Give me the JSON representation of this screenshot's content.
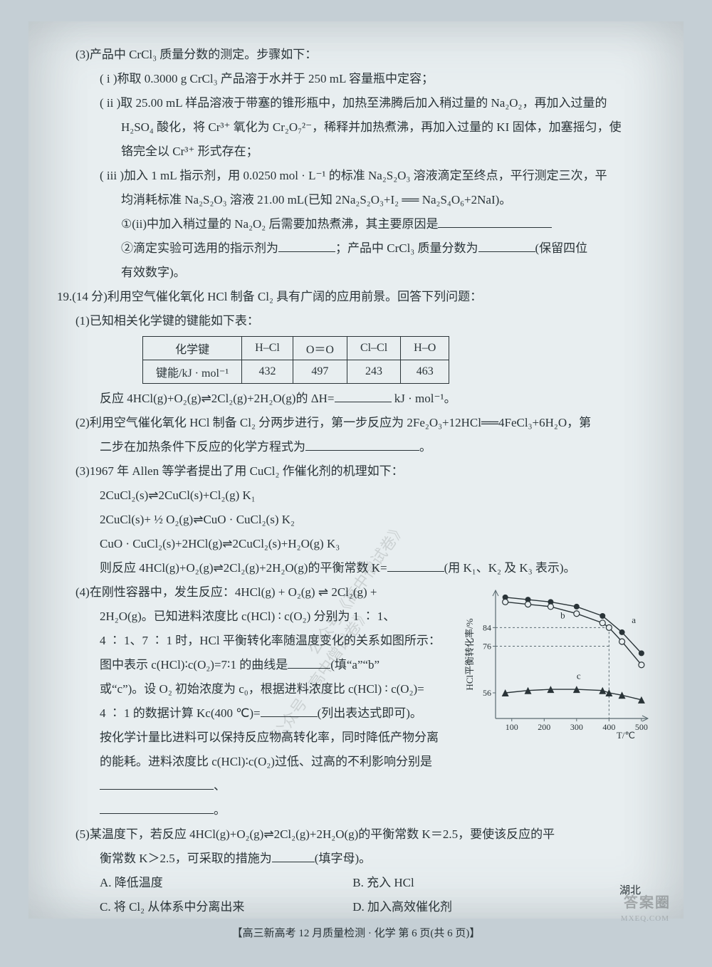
{
  "q3": {
    "intro": "(3)产品中 CrCl₃ 质量分数的测定。步骤如下：",
    "step1": "( i )称取 0.3000 g CrCl₃ 产品溶于水并于 250 mL 容量瓶中定容；",
    "step2a": "( ii )取 25.00 mL 样品溶液于带塞的锥形瓶中，加热至沸腾后加入稍过量的 Na₂O₂，再加入过量的",
    "step2b": "H₂SO₄ 酸化，将 Cr³⁺ 氧化为 Cr₂O₇²⁻，稀释并加热煮沸，再加入过量的 KI 固体，加塞摇匀，使",
    "step2c": "铬完全以 Cr³⁺ 形式存在；",
    "step3a": "( iii )加入 1 mL 指示剂，用 0.0250 mol · L⁻¹ 的标准 Na₂S₂O₃ 溶液滴定至终点，平行测定三次，平",
    "step3b": "均消耗标准 Na₂S₂O₃ 溶液 21.00 mL(已知 2Na₂S₂O₃+I₂ ══ Na₂S₄O₆+2NaI)。",
    "sub1": "①(ii)中加入稍过量的 Na₂O₂ 后需要加热煮沸，其主要原因是",
    "sub2a": "②滴定实验可选用的指示剂为",
    "sub2b": "；产品中 CrCl₃ 质量分数为",
    "sub2c": "(保留四位",
    "sub2d": "有效数字)。"
  },
  "q19": {
    "intro": "19.(14 分)利用空气催化氧化 HCl 制备 Cl₂ 具有广阔的应用前景。回答下列问题：",
    "p1_intro": "(1)已知相关化学键的键能如下表：",
    "table": {
      "headers": [
        "化学键",
        "H–Cl",
        "O＝O",
        "Cl–Cl",
        "H–O"
      ],
      "row_label": "键能/kJ · mol⁻¹",
      "values": [
        "432",
        "497",
        "243",
        "463"
      ]
    },
    "p1_after_a": "反应 4HCl(g)+O₂(g)⇌2Cl₂(g)+2H₂O(g)的 ΔH=",
    "p1_after_b": " kJ · mol⁻¹。",
    "p2a": "(2)利用空气催化氧化 HCl 制备 Cl₂ 分两步进行，第一步反应为 2Fe₂O₃+12HCl══4FeCl₃+6H₂O，第",
    "p2b": "二步在加热条件下反应的化学方程式为",
    "p2c": "。",
    "p3_intro": "(3)1967 年 Allen 等学者提出了用 CuCl₂ 作催化剂的机理如下：",
    "eq1": "2CuCl₂(s)⇌2CuCl(s)+Cl₂(g)    K₁",
    "eq2": "2CuCl(s)+ ½ O₂(g)⇌CuO · CuCl₂(s)    K₂",
    "eq3": "CuO · CuCl₂(s)+2HCl(g)⇌2CuCl₂(s)+H₂O(g)    K₃",
    "p3_end_a": "则反应 4HCl(g)+O₂(g)⇌2Cl₂(g)+2H₂O(g)的平衡常数 K=",
    "p3_end_b": "(用 K₁、K₂ 及 K₃ 表示)。",
    "p4": {
      "l1": "(4)在刚性容器中，发生反应：4HCl(g) + O₂(g) ⇌ 2Cl₂(g) +",
      "l2": "2H₂O(g)。已知进料浓度比 c(HCl) ∶ c(O₂) 分别为 1 ∶ 1、",
      "l3": "4 ∶ 1、7 ∶ 1 时，HCl 平衡转化率随温度变化的关系如图所示：",
      "l4a": "图中表示 c(HCl)∶c(O₂)=7∶1 的曲线是",
      "l4b": "(填“a”“b”",
      "l5a": "或“c”)。设 O₂ 初始浓度为 c₀，根据进料浓度比 c(HCl) ∶ c(O₂)=",
      "l6a": "4 ∶ 1 的数据计算 Kc(400 ℃)=",
      "l6b": "(列出表达式即可)。",
      "l7": "按化学计量比进料可以保持反应物高转化率，同时降低产物分离",
      "l8a": "的能耗。进料浓度比 c(HCl)∶c(O₂)过低、过高的不利影响分别是",
      "l8b": "、"
    },
    "p5a": "(5)某温度下，若反应 4HCl(g)+O₂(g)⇌2Cl₂(g)+2H₂O(g)的平衡常数 K＝2.5，要使该反应的平",
    "p5b": "衡常数 K＞2.5，可采取的措施为",
    "p5c": "(填字母)。",
    "optA": "A. 降低温度",
    "optB": "B. 充入 HCl",
    "optC": "C. 将 Cl₂ 从体系中分离出来",
    "optD": "D. 加入高效催化剂"
  },
  "footer": {
    "center": "【高三新高考 12 月质量检测 · 化学  第 6 页(共 6 页)】",
    "right": "湖北"
  },
  "watermark": {
    "main": "答案圈",
    "sub": "MXEQ.COM",
    "diag": "公众号《高中僧试卷》"
  },
  "chart": {
    "type": "line",
    "xlabel": "T/℃",
    "ylabel": "HCl平衡转化率/%",
    "xticks": [
      100,
      200,
      300,
      400,
      500
    ],
    "yticks": [
      56,
      76,
      84
    ],
    "xlim": [
      50,
      520
    ],
    "ylim": [
      45,
      100
    ],
    "grid_color": "#5a6a70",
    "background": "#e8eef0",
    "text_color": "#2a3438",
    "series": [
      {
        "name": "a",
        "marker": "filled-circle",
        "color": "#2a3438",
        "x": [
          80,
          150,
          220,
          300,
          380,
          440,
          500
        ],
        "y": [
          97,
          96,
          95,
          93,
          89,
          82,
          73
        ]
      },
      {
        "name": "b",
        "marker": "open-circle",
        "color": "#2a3438",
        "x": [
          80,
          150,
          220,
          300,
          380,
          400,
          440,
          500
        ],
        "y": [
          95,
          94,
          93,
          90,
          86,
          84,
          78,
          68
        ]
      },
      {
        "name": "c",
        "marker": "filled-triangle",
        "color": "#2a3438",
        "x": [
          80,
          150,
          220,
          300,
          380,
          400,
          440,
          500
        ],
        "y": [
          56,
          57,
          57.5,
          57.5,
          57,
          56,
          55,
          53
        ]
      }
    ],
    "dashed_guides": [
      {
        "type": "h",
        "y": 84,
        "x_end": 400
      },
      {
        "type": "h",
        "y": 76,
        "x_end": 400
      },
      {
        "type": "v",
        "x": 400,
        "y_top": 84
      }
    ],
    "label_fontsize": 13,
    "tick_fontsize": 12,
    "line_width": 1.4,
    "marker_size": 4
  }
}
